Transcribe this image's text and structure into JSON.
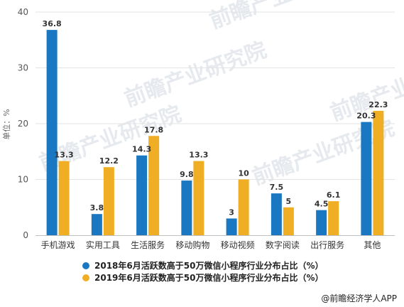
{
  "chart_data": {
    "type": "bar",
    "ylabel": "单位：%",
    "ylim": [
      0,
      40
    ],
    "yticks": [
      0,
      10,
      20,
      30,
      40
    ],
    "categories": [
      "手机游戏",
      "实用工具",
      "生活服务",
      "移动购物",
      "移动视频",
      "数字阅读",
      "出行服务",
      "其他"
    ],
    "series": [
      {
        "name": "2018年6月活跃数高于50万微信小程序行业分布占比（%）",
        "color": "#1a78c2",
        "values": [
          36.8,
          3.8,
          14.3,
          9.8,
          3,
          7.5,
          4.5,
          20.3
        ]
      },
      {
        "name": "2019年6月活跃数高于50万微信小程序行业分布占比（%）",
        "color": "#f0ae24",
        "values": [
          13.3,
          12.2,
          17.8,
          13.3,
          10,
          5,
          6.1,
          22.3
        ]
      }
    ],
    "legend_position": "bottom",
    "grid": true
  },
  "source_label": "@前瞻经济学人APP",
  "watermark": "前瞻产业研究院"
}
